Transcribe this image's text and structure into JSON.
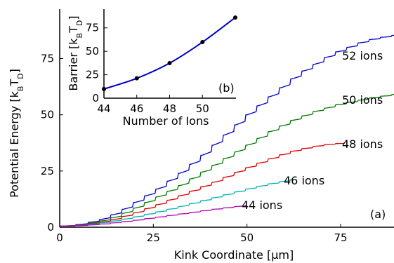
{
  "chart_data": [
    {
      "type": "line",
      "xlabel": "Kink Coordinate [μm]",
      "ylabel": "Potential Energy [kBTD]",
      "xlim": [
        0,
        93
      ],
      "ylim": [
        0,
        97
      ],
      "xticks": [
        "0",
        "25",
        "50",
        "75"
      ],
      "yticks": [
        "0",
        "25",
        "50",
        "75"
      ],
      "panel_label": "(a)",
      "grid": false,
      "series": [
        {
          "name": "52 ions",
          "color": "#0000cc",
          "x": [
            0,
            5,
            8,
            11,
            14,
            17,
            20,
            23,
            26,
            29,
            32,
            35,
            38,
            41,
            44,
            47,
            50,
            53,
            56,
            59,
            62,
            65,
            68,
            71,
            74,
            77,
            80,
            83,
            86,
            89,
            92
          ],
          "y": [
            0.5,
            1.2,
            2.2,
            3.5,
            5.5,
            8,
            11,
            14,
            17,
            20.5,
            24,
            28,
            32,
            36.5,
            41,
            45.5,
            50,
            54,
            58,
            62,
            66,
            69.5,
            72.5,
            75.5,
            78,
            80,
            82,
            83.5,
            84.5,
            85.3,
            86
          ]
        },
        {
          "name": "50 ions",
          "color": "#007a00",
          "x": [
            0,
            5,
            8,
            11,
            14,
            17,
            20,
            23,
            26,
            29,
            32,
            35,
            38,
            41,
            44,
            47,
            50,
            53,
            56,
            59,
            62,
            65,
            68,
            71,
            74,
            77,
            80,
            83,
            86,
            89,
            92
          ],
          "y": [
            0.5,
            1,
            1.8,
            2.8,
            4.2,
            6.2,
            8.5,
            11,
            13.5,
            16,
            18.5,
            21.5,
            24.5,
            27.5,
            30.5,
            33.5,
            36.5,
            39.5,
            42.5,
            45,
            47.5,
            49.5,
            51.5,
            53,
            54.5,
            55.5,
            56.5,
            57.5,
            58.3,
            59,
            59.8
          ]
        },
        {
          "name": "48 ions",
          "color": "#e00000",
          "x": [
            0,
            5,
            8,
            11,
            14,
            17,
            20,
            23,
            26,
            29,
            32,
            35,
            38,
            41,
            44,
            47,
            50,
            53,
            56,
            59,
            62,
            65,
            68,
            71,
            74,
            76
          ],
          "y": [
            0.5,
            0.9,
            1.5,
            2.3,
            3.4,
            4.8,
            6.4,
            8.2,
            10,
            12,
            14,
            16,
            18,
            20,
            22.2,
            24.4,
            26.5,
            28.5,
            30.4,
            32.2,
            33.8,
            35,
            36,
            36.8,
            37.2,
            37.4
          ]
        },
        {
          "name": "46 ions",
          "color": "#00b3b3",
          "x": [
            0,
            5,
            8,
            11,
            14,
            17,
            20,
            23,
            26,
            29,
            32,
            35,
            38,
            41,
            44,
            47,
            50,
            53,
            56,
            59,
            62
          ],
          "y": [
            0.5,
            0.8,
            1.3,
            1.9,
            2.7,
            3.6,
            4.6,
            5.7,
            6.8,
            8,
            9.2,
            10.5,
            11.8,
            13.1,
            14.4,
            15.7,
            17,
            18.2,
            19.3,
            20.3,
            21.2
          ]
        },
        {
          "name": "44 ions",
          "color": "#b300b3",
          "x": [
            0,
            5,
            8,
            11,
            14,
            17,
            20,
            23,
            26,
            29,
            32,
            35,
            38,
            41,
            44,
            47,
            50
          ],
          "y": [
            0.5,
            0.7,
            1,
            1.4,
            1.9,
            2.5,
            3.1,
            3.8,
            4.5,
            5.2,
            5.9,
            6.6,
            7.3,
            8,
            8.6,
            9.2,
            9.8
          ]
        }
      ]
    },
    {
      "type": "line",
      "xlabel": "Number of Ions",
      "ylabel": "Barrier [kBTD]",
      "xlim": [
        44,
        52
      ],
      "ylim": [
        0,
        95
      ],
      "xticks": [
        "44",
        "46",
        "48",
        "50"
      ],
      "yticks": [
        "0",
        "25",
        "50",
        "75"
      ],
      "panel_label": "(b)",
      "points": {
        "x": [
          44,
          46,
          48,
          50,
          52
        ],
        "y": [
          9.8,
          21.2,
          37.4,
          59.8,
          86
        ]
      },
      "fit_color": "#0000cc"
    }
  ]
}
